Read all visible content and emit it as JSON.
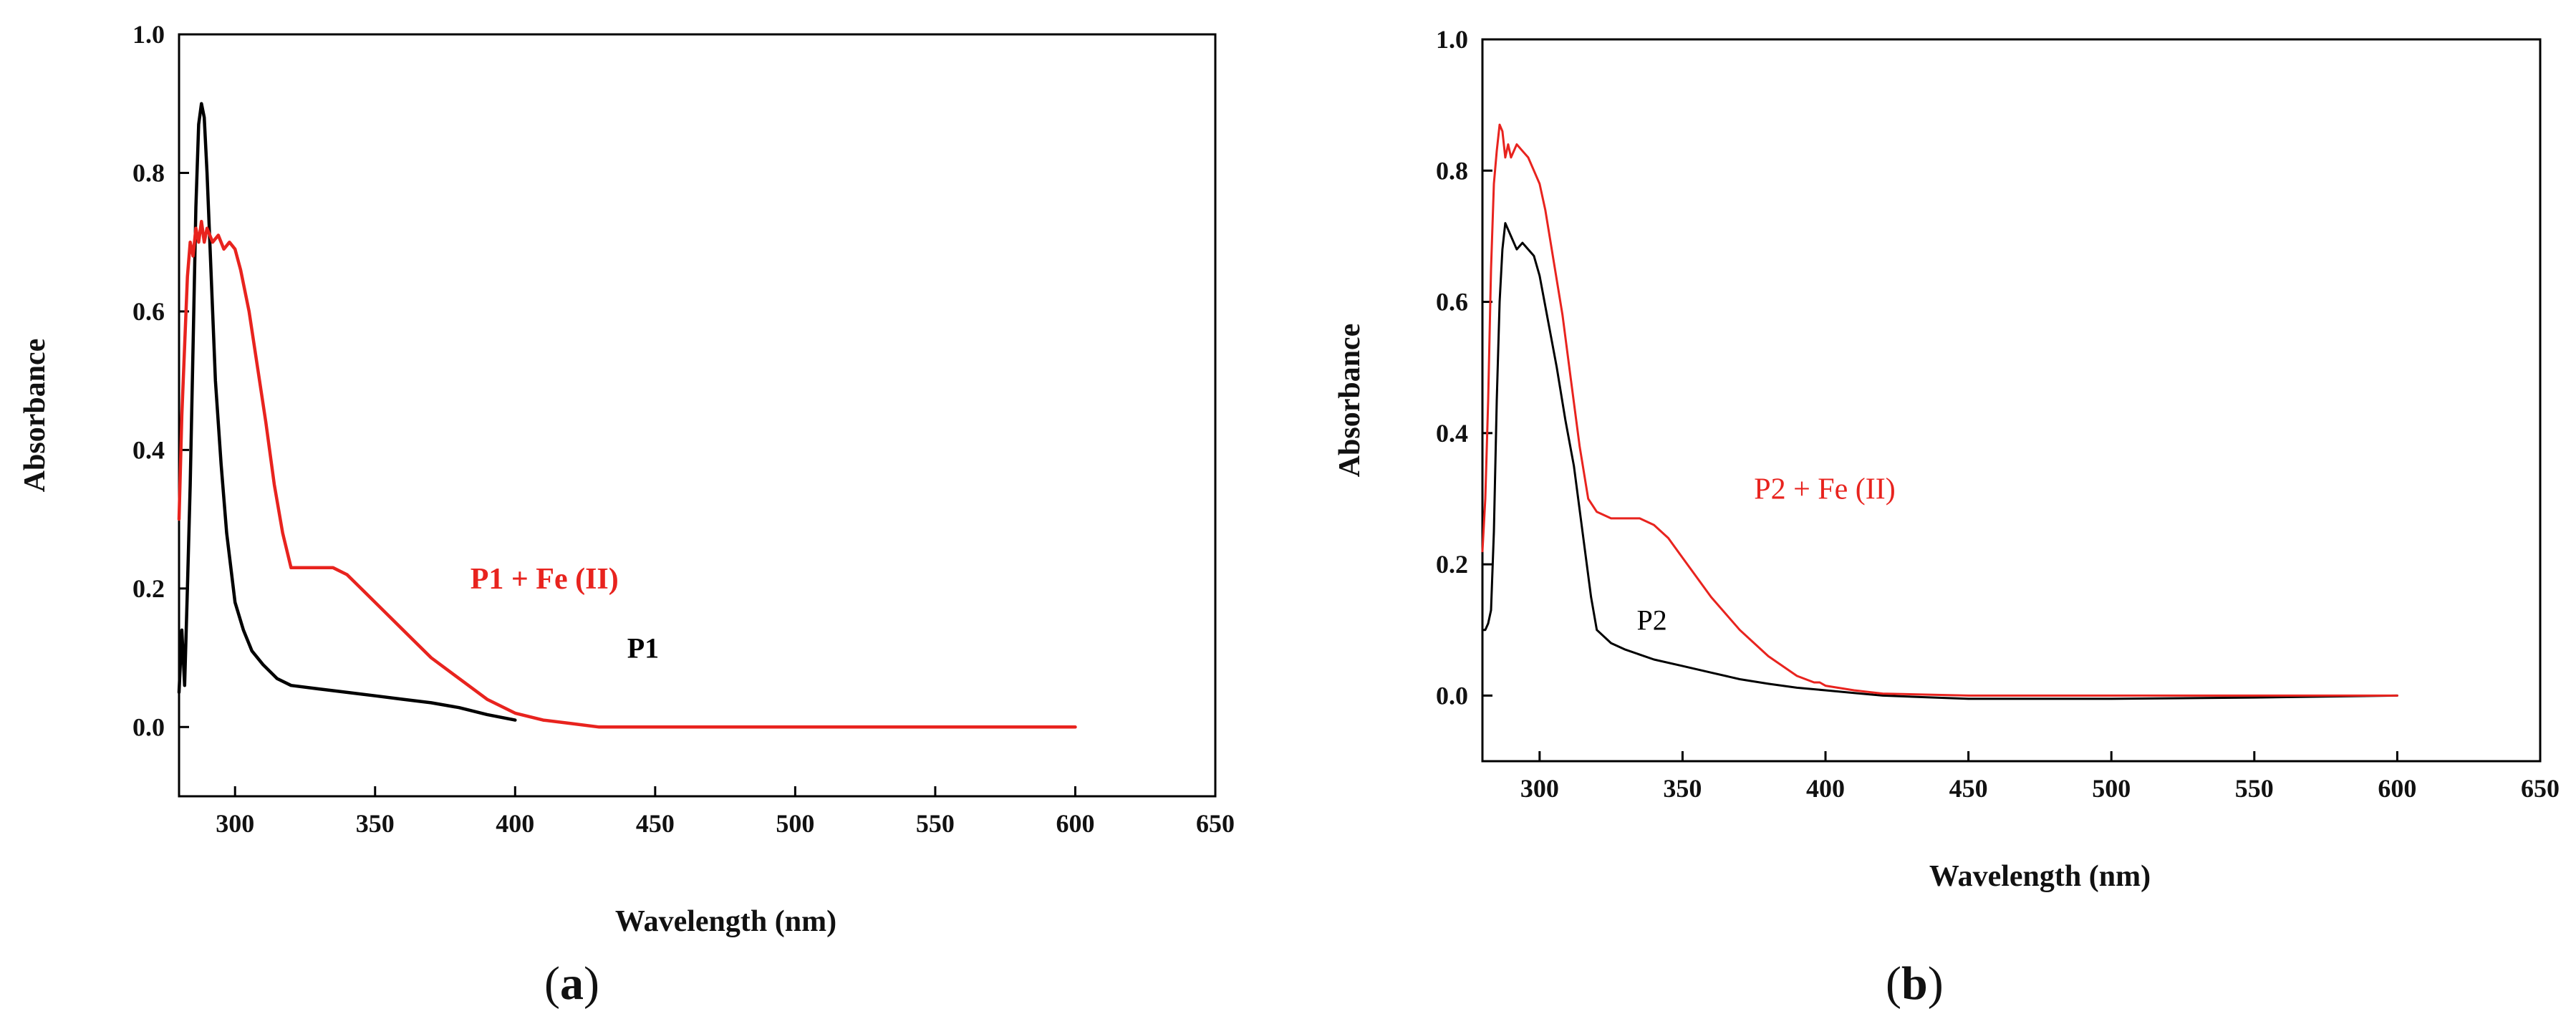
{
  "figure": {
    "panels": [
      {
        "panel_label": "a",
        "annotations": [
          {
            "text": "P1",
            "color": "#000000",
            "font": "sans",
            "bold": true,
            "x": 440,
            "y": 0.1
          },
          {
            "text": "P1 + Fe (II)",
            "color": "#e8231e",
            "font": "serif",
            "bold": true,
            "x": 384,
            "y": 0.2
          }
        ]
      },
      {
        "panel_label": "b",
        "annotations": [
          {
            "text": "P2",
            "color": "#000000",
            "font": "sans",
            "bold": false,
            "x": 334,
            "y": 0.1
          },
          {
            "text": "P2 + Fe (II)",
            "color": "#e8231e",
            "font": "serif",
            "bold": false,
            "x": 375,
            "y": 0.3
          }
        ]
      }
    ]
  },
  "chart_data": [
    {
      "type": "line",
      "xlabel": "Wavelength (nm)",
      "ylabel": "Absorbance",
      "xlim": [
        280,
        650
      ],
      "ylim": [
        -0.1,
        1.0
      ],
      "x_ticks": [
        "300",
        "350",
        "400",
        "450",
        "500",
        "550",
        "600",
        "650"
      ],
      "y_ticks": [
        "0.0",
        "0.2",
        "0.4",
        "0.6",
        "0.8",
        "1.0"
      ],
      "grid": false,
      "series": [
        {
          "name": "P1",
          "color": "#000000",
          "x": [
            280,
            281,
            282,
            283,
            284,
            285,
            286,
            287,
            288,
            289,
            290,
            291,
            292,
            293,
            295,
            297,
            300,
            303,
            306,
            310,
            315,
            320,
            330,
            340,
            350,
            360,
            370,
            380,
            390,
            400
          ],
          "y": [
            0.05,
            0.14,
            0.06,
            0.2,
            0.35,
            0.55,
            0.75,
            0.87,
            0.9,
            0.88,
            0.8,
            0.7,
            0.6,
            0.5,
            0.38,
            0.28,
            0.18,
            0.14,
            0.11,
            0.09,
            0.07,
            0.06,
            0.055,
            0.05,
            0.045,
            0.04,
            0.035,
            0.028,
            0.018,
            0.01
          ]
        },
        {
          "name": "P1 + Fe (II)",
          "color": "#e8231e",
          "x": [
            280,
            281,
            282,
            283,
            284,
            285,
            286,
            287,
            288,
            289,
            290,
            292,
            294,
            296,
            298,
            300,
            302,
            305,
            308,
            311,
            314,
            317,
            320,
            325,
            330,
            335,
            340,
            345,
            350,
            360,
            370,
            380,
            390,
            400,
            410,
            420,
            430,
            440,
            460,
            500,
            550,
            600
          ],
          "y": [
            0.3,
            0.45,
            0.55,
            0.65,
            0.7,
            0.68,
            0.72,
            0.7,
            0.73,
            0.7,
            0.72,
            0.7,
            0.71,
            0.69,
            0.7,
            0.69,
            0.66,
            0.6,
            0.52,
            0.44,
            0.35,
            0.28,
            0.23,
            0.23,
            0.23,
            0.23,
            0.22,
            0.2,
            0.18,
            0.14,
            0.1,
            0.07,
            0.04,
            0.02,
            0.01,
            0.005,
            0.0,
            0.0,
            0.0,
            0.0,
            0.0,
            0.0
          ]
        }
      ]
    },
    {
      "type": "line",
      "xlabel": "Wavelength (nm)",
      "ylabel": "Absorbance",
      "xlim": [
        280,
        650
      ],
      "ylim": [
        -0.1,
        1.0
      ],
      "x_ticks": [
        "300",
        "350",
        "400",
        "450",
        "500",
        "550",
        "600",
        "650"
      ],
      "y_ticks": [
        "0.0",
        "0.2",
        "0.4",
        "0.6",
        "0.8",
        "1.0"
      ],
      "grid": false,
      "series": [
        {
          "name": "P2",
          "color": "#000000",
          "x": [
            280,
            281,
            282,
            283,
            284,
            285,
            286,
            287,
            288,
            289,
            290,
            292,
            294,
            296,
            298,
            300,
            303,
            306,
            309,
            312,
            315,
            318,
            320,
            325,
            330,
            340,
            350,
            360,
            370,
            380,
            390,
            400,
            410,
            420,
            450,
            500,
            550,
            600
          ],
          "y": [
            0.1,
            0.1,
            0.11,
            0.13,
            0.25,
            0.45,
            0.6,
            0.68,
            0.72,
            0.71,
            0.7,
            0.68,
            0.69,
            0.68,
            0.67,
            0.64,
            0.57,
            0.5,
            0.42,
            0.35,
            0.25,
            0.15,
            0.1,
            0.08,
            0.07,
            0.055,
            0.045,
            0.035,
            0.025,
            0.018,
            0.012,
            0.008,
            0.004,
            0.0,
            -0.005,
            -0.005,
            -0.003,
            0.0
          ]
        },
        {
          "name": "P2 + Fe (II)",
          "color": "#e8231e",
          "x": [
            280,
            281,
            282,
            283,
            284,
            285,
            286,
            287,
            288,
            289,
            290,
            292,
            294,
            296,
            298,
            300,
            302,
            305,
            308,
            311,
            314,
            317,
            320,
            325,
            330,
            335,
            340,
            345,
            350,
            360,
            370,
            380,
            390,
            396,
            398,
            400,
            410,
            420,
            450,
            500,
            550,
            600
          ],
          "y": [
            0.22,
            0.3,
            0.45,
            0.65,
            0.78,
            0.83,
            0.87,
            0.86,
            0.82,
            0.84,
            0.82,
            0.84,
            0.83,
            0.82,
            0.8,
            0.78,
            0.74,
            0.66,
            0.58,
            0.48,
            0.38,
            0.3,
            0.28,
            0.27,
            0.27,
            0.27,
            0.26,
            0.24,
            0.21,
            0.15,
            0.1,
            0.06,
            0.03,
            0.02,
            0.02,
            0.015,
            0.008,
            0.003,
            0.0,
            0.0,
            0.0,
            0.0
          ]
        }
      ]
    }
  ]
}
